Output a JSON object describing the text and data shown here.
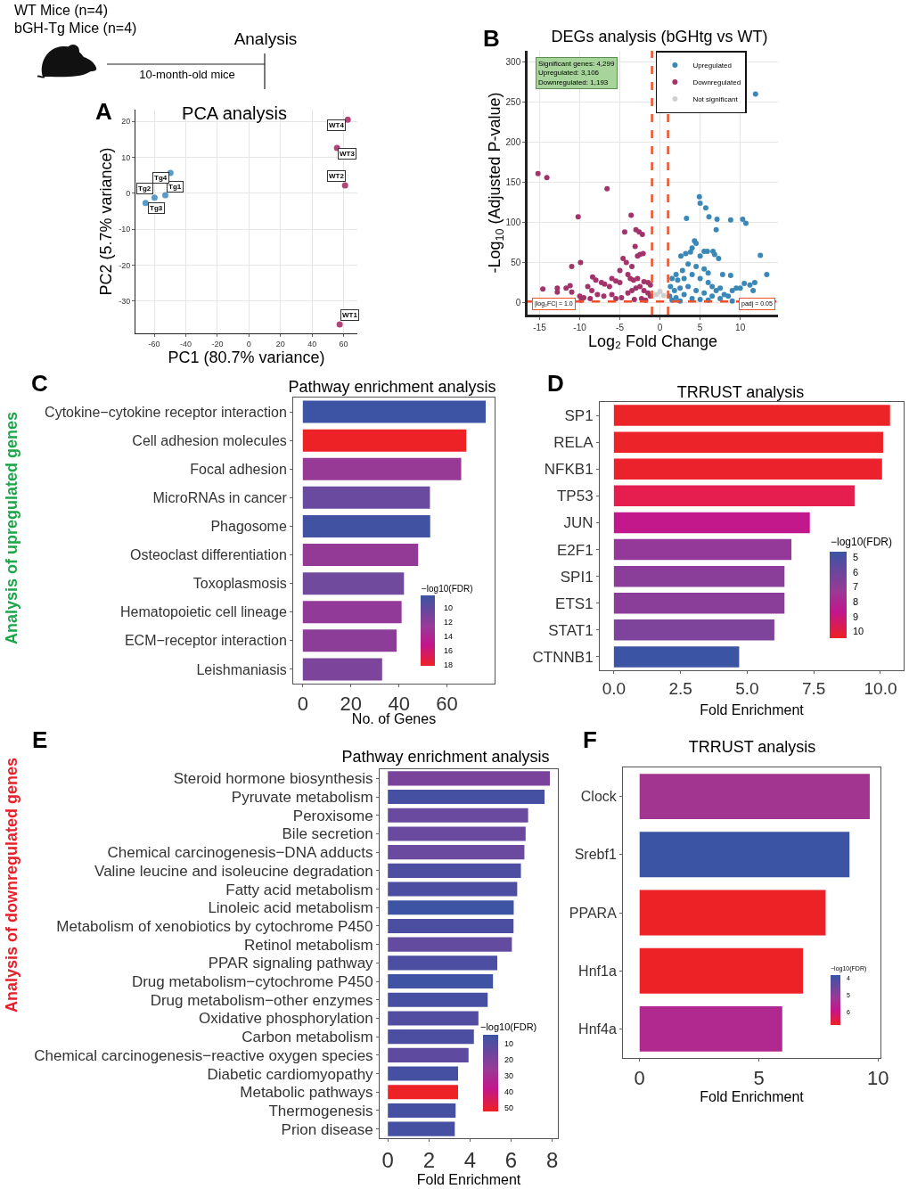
{
  "chart_data": [
    {
      "type": "other",
      "annotations": [
        "WT Mice (n=4)",
        "bGH-Tg Mice (n=4)",
        "Analysis",
        "10-month-old mice"
      ]
    },
    {
      "type": "scatter",
      "title": "PCA analysis",
      "xlabel": "PC1 (80.7% variance)",
      "ylabel": "PC2 (5.7% variance)",
      "xlim": [
        -71.9,
        68.7
      ],
      "ylim": [
        -39,
        23.3
      ],
      "xticks": [
        -60,
        -40,
        -20,
        0,
        20,
        40,
        60
      ],
      "yticks": [
        -30,
        -20,
        -10,
        0,
        10,
        20
      ],
      "grid": true,
      "marker": "circle",
      "series": [
        {
          "color": "#5b9bc8",
          "x": [
            -53,
            -59.8,
            -65.5,
            -49.7
          ],
          "values": [
            -0.5,
            -1.2,
            -2.7,
            5.7
          ]
        },
        {
          "color": "#b0457a",
          "x": [
            57.5,
            60.9,
            55.8,
            62.6
          ],
          "values": [
            -36.5,
            2.2,
            12.6,
            20.5
          ]
        }
      ],
      "annotations": [
        "A",
        {
          "text": "Tg1",
          "x": -53,
          "y": -0.5
        },
        {
          "text": "Tg2",
          "x": -59.8,
          "y": -1.2
        },
        {
          "text": "Tg3",
          "x": -65.5,
          "y": -2.7
        },
        {
          "text": "Tg4",
          "x": -49.7,
          "y": 5.7
        },
        {
          "text": "WT1",
          "x": 57.5,
          "y": -36.5
        },
        {
          "text": "WT2",
          "x": 60.9,
          "y": 2.2
        },
        {
          "text": "WT3",
          "x": 55.8,
          "y": 12.6
        },
        {
          "text": "WT4",
          "x": 62.6,
          "y": 20.5
        }
      ]
    },
    {
      "type": "scatter",
      "title": "DEGs analysis (bGHtg vs WT)",
      "xlabel": "Log₂ Fold Change",
      "ylabel": "-Log$_{10}$ (Adjusted P-value)",
      "xlim": [
        -16.5,
        14.7
      ],
      "ylim": [
        -15,
        314
      ],
      "xticks": [
        -15,
        -10,
        -5,
        0,
        5,
        10
      ],
      "yticks": [
        0,
        50,
        100,
        150,
        200,
        250,
        300
      ],
      "grid": true,
      "marker": "circle",
      "legend": "top right",
      "series": [
        {
          "name": "Upregulated",
          "color": "#3a88b8",
          "x": [
            11.9,
            4.9,
            5.0,
            5.7,
            6.1,
            3.3,
            7.1,
            8.8,
            10.3,
            10.7,
            7.0,
            4.3,
            4.5,
            4.0,
            3.8,
            5.5,
            5.9,
            6.6,
            6.8,
            12.5,
            2.6,
            3.2,
            5.0,
            7.3,
            3.5,
            2.8,
            4.5,
            5.5,
            6.0,
            2.0,
            7.8,
            8.8,
            13.3,
            1.5,
            2.2,
            3.0,
            4.0,
            5.0,
            6.0,
            6.5,
            7.0,
            7.5,
            8.0,
            9.0,
            9.5,
            10.0,
            10.5,
            11.2,
            11.8,
            11.6,
            1.3,
            1.8,
            2.5,
            3.5,
            4.5,
            5.5,
            6.5,
            7.5,
            8.5,
            1.2,
            2.0,
            3.0,
            4.0,
            5.0,
            6.0,
            9.0,
            1.5,
            2.5
          ],
          "values": [
            260,
            132,
            124,
            118,
            107,
            105,
            104,
            103,
            104,
            99,
            91,
            77,
            74,
            68,
            63,
            64,
            64,
            64,
            60,
            59,
            58,
            61,
            58,
            55,
            48,
            40,
            45,
            42,
            37,
            35,
            35,
            34,
            35,
            30,
            28,
            30,
            35,
            30,
            25,
            20,
            15,
            18,
            10,
            15,
            18,
            18,
            24,
            22,
            25,
            15,
            20,
            15,
            18,
            20,
            15,
            12,
            8,
            5,
            8,
            8,
            6,
            10,
            5,
            4,
            3,
            2,
            3,
            2
          ]
        },
        {
          "name": "Downregulated",
          "color": "#a3336b",
          "x": [
            -15.2,
            -14.1,
            -6.6,
            -10.2,
            -3.6,
            -4.4,
            -3.0,
            -2.6,
            -2.2,
            -3.1,
            -11.0,
            -9.9,
            -2.5,
            -2.1,
            -2.8,
            -4.6,
            -4.2,
            -3.5,
            -5.0,
            -8.4,
            -8.0,
            -7.3,
            -6.9,
            -6.0,
            -6.3,
            -5.5,
            -5.0,
            -4.0,
            -3.7,
            -3.3,
            -2.8,
            -2.0,
            -1.5,
            -1.2,
            -12.8,
            -12.8,
            -11.7,
            -11.2,
            -11.0,
            -14.6,
            -10.0,
            -9.5,
            -9.0,
            -8.5,
            -7.8,
            -7.0,
            -6.0,
            -5.5,
            -4.8,
            -4.0,
            -3.5,
            -3.0,
            -2.5,
            -2.0,
            -1.5,
            -1.2,
            -2.3,
            -3.2,
            -1.8,
            -9.8,
            -8.7
          ],
          "values": [
            161,
            156,
            142,
            107,
            109,
            88,
            91,
            88,
            85,
            70,
            45,
            50,
            60,
            61,
            58,
            55,
            50,
            45,
            40,
            32,
            28,
            25,
            23,
            30,
            20,
            27,
            25,
            35,
            30,
            28,
            30,
            26,
            25,
            22,
            18,
            13,
            18,
            21,
            13,
            17,
            8,
            6,
            20,
            15,
            10,
            8,
            10,
            5,
            6,
            12,
            15,
            18,
            20,
            15,
            12,
            8,
            5,
            4,
            3,
            3,
            5
          ]
        },
        {
          "name": "Not significant",
          "color": "#cfcfcf",
          "x": [
            -0.45,
            0,
            0.45
          ],
          "values": [
            10,
            14,
            9
          ]
        }
      ],
      "ref_lines": [
        {
          "axis": "x",
          "value": -1,
          "color": "#f0502a",
          "line_style": "dashed"
        },
        {
          "axis": "x",
          "value": 1,
          "color": "#f0502a",
          "line_style": "dashed"
        },
        {
          "axis": "y",
          "value": 1.3,
          "color": "#f0502a",
          "line_style": "dashed"
        }
      ],
      "annotations": [
        "B",
        "Significant genes: 4,299\nUpregulated: 3,106\nDownregulated: 1,193",
        "|log₂FC| = 1.0",
        "padj = 0.05"
      ]
    },
    {
      "type": "bar",
      "orientation": "horizontal",
      "title": "Pathway enrichment analysis",
      "xlabel": "No. of Genes",
      "categories": [
        "Cytokine−cytokine receptor interaction",
        "Cell adhesion molecules",
        "Focal adhesion",
        "MicroRNAs in cancer",
        "Phagosome",
        "Osteoclast differentiation",
        "Toxoplasmosis",
        "Hematopoietic cell lineage",
        "ECM−receptor interaction",
        "Leishmaniasis"
      ],
      "values": [
        76.1,
        68,
        65.9,
        52.9,
        53,
        48,
        42.1,
        41.1,
        39,
        33
      ],
      "colors": [
        "#3c54a3",
        "#ec2227",
        "#963a95",
        "#6a4a9f",
        "#4252a2",
        "#933a96",
        "#704a9d",
        "#923a97",
        "#8b3d98",
        "#7c449b"
      ],
      "xlim": [
        -4,
        79.8
      ],
      "xticks": [
        0,
        20,
        40,
        60
      ],
      "annotations": [
        "C",
        "Analysis of upregulated genes",
        "−log10(FDR)",
        "10",
        "12",
        "14",
        "16",
        "18"
      ]
    },
    {
      "type": "bar",
      "orientation": "horizontal",
      "title": "TRRUST analysis",
      "xlabel": "Fold Enrichment",
      "categories": [
        "SP1",
        "RELA",
        "NFKB1",
        "TP53",
        "JUN",
        "E2F1",
        "SPI1",
        "ETS1",
        "STAT1",
        "CTNNB1"
      ],
      "values": [
        10.36,
        10.1,
        10.06,
        9.03,
        7.35,
        6.66,
        6.4,
        6.4,
        6.02,
        4.7
      ],
      "colors": [
        "#ec2327",
        "#ec2329",
        "#eb222c",
        "#e61e4f",
        "#c2188c",
        "#94389a",
        "#8a3d99",
        "#8a3d99",
        "#7e439b",
        "#3b54a4"
      ],
      "xlim": [
        -0.53,
        10.87
      ],
      "xticks": [
        {
          "value": 0,
          "label": "0.0"
        },
        {
          "value": 2.5,
          "label": "2.5"
        },
        {
          "value": 5,
          "label": "5.0"
        },
        {
          "value": 7.5,
          "label": "7.5"
        },
        {
          "value": 10,
          "label": "10.0"
        }
      ],
      "annotations": [
        "D",
        "−log10(FDR)",
        "5",
        "6",
        "7",
        "8",
        "9",
        "10"
      ]
    },
    {
      "type": "bar",
      "orientation": "horizontal",
      "title": "Pathway enrichment analysis",
      "xlabel": "Fold Enrichment",
      "categories": [
        "Steroid hormone biosynthesis",
        "Pyruvate metabolism",
        "Peroxisome",
        "Bile secretion",
        "Chemical carcinogenesis−DNA adducts",
        "Valine leucine and isoleucine degradation",
        "Fatty acid metabolism",
        "Linoleic acid metabolism",
        "Metabolism of xenobiotics by cytochrome P450",
        "Retinol metabolism",
        "PPAR signaling pathway",
        "Drug metabolism−cytochrome P450",
        "Drug metabolism−other enzymes",
        "Oxidative phosphorylation",
        "Carbon metabolism",
        "Chemical carcinogenesis−reactive oxygen species",
        "Diabetic cardiomyopathy",
        "Metabolic pathways",
        "Thermogenesis",
        "Prion disease"
      ],
      "values": [
        7.89,
        7.63,
        6.83,
        6.71,
        6.65,
        6.48,
        6.3,
        6.13,
        6.12,
        6.04,
        5.33,
        5.12,
        4.86,
        4.41,
        4.19,
        3.93,
        3.42,
        3.42,
        3.3,
        3.26
      ],
      "colors": [
        "#7a439b",
        "#4650a2",
        "#6a4a9f",
        "#6a4a9f",
        "#6a4a9f",
        "#4d4ea1",
        "#4d4ea1",
        "#3d53a4",
        "#4b4ea1",
        "#634b9f",
        "#4b4ea1",
        "#3f53a4",
        "#474fa2",
        "#524da0",
        "#4b4ea1",
        "#5e4b9f",
        "#4650a2",
        "#ec2227",
        "#4650a2",
        "#4650a2"
      ],
      "xlim": [
        -0.4,
        8.28
      ],
      "xticks": [
        0,
        2,
        4,
        6,
        8
      ],
      "annotations": [
        "E",
        "Analysis of downregulated genes",
        "−log10(FDR)",
        "10",
        "20",
        "30",
        "40",
        "50"
      ]
    },
    {
      "type": "bar",
      "orientation": "horizontal",
      "title": "TRRUST analysis",
      "xlabel": "Fold Enrichment",
      "categories": [
        "Clock",
        "Srebf1",
        "PPARA",
        "Hnf1a",
        "Hnf4a"
      ],
      "values": [
        9.65,
        8.8,
        7.8,
        6.85,
        5.98
      ],
      "colors": [
        "#a1358f",
        "#3c54a4",
        "#ec2227",
        "#ec2227",
        "#b1298f"
      ],
      "xlim": [
        -0.7,
        10.1
      ],
      "xticks": [
        0,
        5,
        10
      ],
      "annotations": [
        "F",
        "−log10(FDR)",
        "4",
        "5",
        "6"
      ]
    }
  ]
}
